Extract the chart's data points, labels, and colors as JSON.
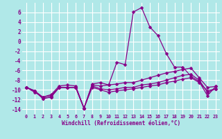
{
  "xlabel": "Windchill (Refroidissement éolien,°C)",
  "bg_color": "#b0e8e8",
  "line_color": "#880088",
  "grid_color": "#ffffff",
  "x_values": [
    0,
    1,
    2,
    3,
    4,
    5,
    6,
    7,
    8,
    9,
    10,
    11,
    12,
    13,
    14,
    15,
    16,
    17,
    18,
    19,
    20,
    21,
    22,
    23
  ],
  "series1": [
    -9.5,
    -10.2,
    -11.8,
    -11.5,
    -9.5,
    -9.5,
    -9.5,
    -13.8,
    -9.0,
    -9.2,
    -9.0,
    -4.3,
    -4.8,
    6.1,
    7.0,
    3.0,
    1.2,
    -2.5,
    -5.3,
    -5.3,
    -7.2,
    -8.3,
    -11.2,
    -9.3
  ],
  "series2": [
    -9.5,
    -10.2,
    -11.8,
    -11.5,
    -9.5,
    -9.5,
    -9.5,
    -13.8,
    -8.8,
    -8.5,
    -9.0,
    -8.8,
    -8.5,
    -8.5,
    -8.0,
    -7.5,
    -7.0,
    -6.5,
    -6.2,
    -5.8,
    -5.5,
    -7.5,
    -9.5,
    -9.3
  ],
  "series3": [
    -9.5,
    -10.2,
    -11.5,
    -11.2,
    -9.5,
    -9.5,
    -9.5,
    -13.8,
    -9.2,
    -9.8,
    -10.0,
    -9.8,
    -9.5,
    -9.5,
    -9.0,
    -8.8,
    -8.5,
    -8.0,
    -7.5,
    -7.0,
    -6.8,
    -8.0,
    -10.5,
    -9.8
  ],
  "series4": [
    -9.5,
    -10.5,
    -11.5,
    -11.0,
    -9.2,
    -9.0,
    -9.2,
    -13.8,
    -9.5,
    -10.0,
    -10.5,
    -10.2,
    -10.0,
    -9.8,
    -9.5,
    -9.2,
    -9.0,
    -8.5,
    -8.2,
    -7.8,
    -7.5,
    -8.5,
    -10.2,
    -9.8
  ],
  "ylim": [
    -15,
    8
  ],
  "xlim": [
    -0.5,
    23.5
  ],
  "yticks": [
    -14,
    -12,
    -10,
    -8,
    -6,
    -4,
    -2,
    0,
    2,
    4,
    6
  ],
  "xticks": [
    0,
    1,
    2,
    3,
    4,
    5,
    6,
    7,
    8,
    9,
    10,
    11,
    12,
    13,
    14,
    15,
    16,
    17,
    18,
    19,
    20,
    21,
    22,
    23
  ],
  "ytick_labels": [
    "-14",
    "-12",
    "-10",
    "-8",
    "-6",
    "-4",
    "-2",
    "0",
    "2",
    "4",
    "6"
  ],
  "xtick_labels": [
    "0",
    "1",
    "2",
    "3",
    "4",
    "5",
    "6",
    "7",
    "8",
    "9",
    "10",
    "11",
    "12",
    "13",
    "14",
    "15",
    "16",
    "17",
    "18",
    "19",
    "20",
    "21",
    "22",
    "23"
  ]
}
